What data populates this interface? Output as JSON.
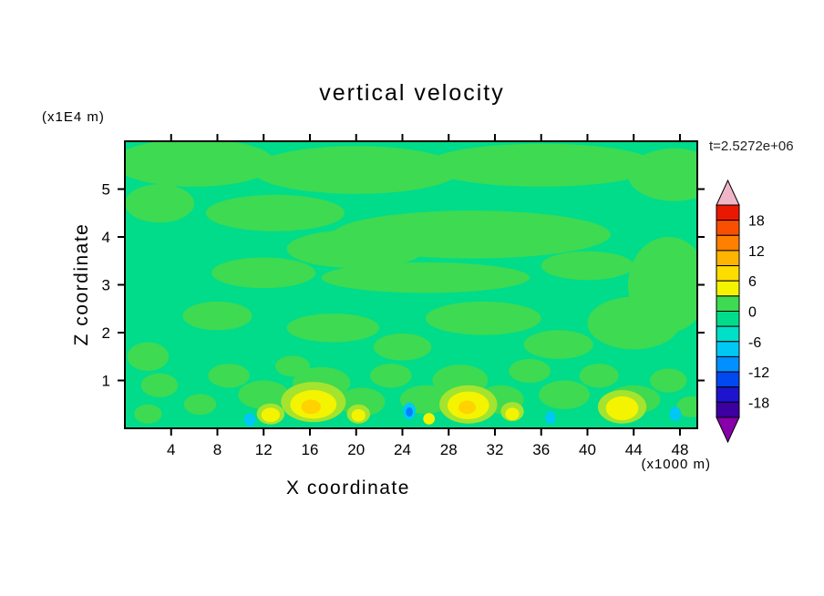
{
  "chart_data": {
    "type": "heatmap",
    "title": "vertical velocity",
    "time_label": "t=2.5272e+06",
    "x_axis_label": "X coordinate",
    "y_axis_label": "Z coordinate",
    "x_unit_label": "(x1000 m)",
    "y_unit_label": "(x1E4 m)",
    "xlim": [
      0,
      49.5
    ],
    "ylim": [
      0,
      6
    ],
    "xticks": [
      4,
      8,
      12,
      16,
      20,
      24,
      28,
      32,
      36,
      40,
      44,
      48
    ],
    "yticks": [
      1,
      2,
      3,
      4,
      5
    ],
    "grid": false,
    "legend_position": "right-colorbar",
    "colorbar": {
      "labels": [
        18,
        12,
        6,
        0,
        -6,
        -12,
        -18
      ],
      "level_min": -21,
      "level_max": 21,
      "step": 3,
      "colors_top_to_bottom": [
        "#ea1800",
        "#f85000",
        "#ff8000",
        "#ffb400",
        "#ffdc00",
        "#f4f400",
        "#3eda52",
        "#00dc8a",
        "#00dfc8",
        "#00c8f5",
        "#0090ff",
        "#0048f0",
        "#1e14cd",
        "#3c00a0"
      ],
      "top_arrow_color": "#f0b6c8",
      "bottom_arrow_color": "#8800aa"
    },
    "colors": {
      "frame": "#000000",
      "time_label": "#222222",
      "background": "#ffffff"
    },
    "field": {
      "background_value_band": [
        -3,
        0
      ],
      "palette": {
        "bg": "#00dc8a",
        "g1": "#3eda52",
        "g2": "#a4e42e",
        "y": "#f4f400",
        "gold": "#ffd200",
        "c": "#00c8f5",
        "b": "#0080ff"
      },
      "patches": [
        [
          6,
          5.55,
          7,
          0.5,
          "g1"
        ],
        [
          20,
          5.4,
          9,
          0.5,
          "g1"
        ],
        [
          36,
          5.5,
          10,
          0.45,
          "g1"
        ],
        [
          47.5,
          5.3,
          4,
          0.55,
          "g1"
        ],
        [
          3,
          4.7,
          3,
          0.4,
          "g1"
        ],
        [
          13,
          4.5,
          6,
          0.38,
          "g1"
        ],
        [
          30,
          4.05,
          12,
          0.5,
          "g1"
        ],
        [
          20,
          3.75,
          6,
          0.4,
          "g1"
        ],
        [
          12,
          3.25,
          4.5,
          0.32,
          "g1"
        ],
        [
          26,
          3.15,
          9,
          0.32,
          "g1"
        ],
        [
          40,
          3.4,
          4,
          0.3,
          "g1"
        ],
        [
          47,
          3.0,
          3.5,
          1.0,
          "g1"
        ],
        [
          8,
          2.35,
          3,
          0.3,
          "g1"
        ],
        [
          18,
          2.1,
          4,
          0.3,
          "g1"
        ],
        [
          31,
          2.3,
          5,
          0.35,
          "g1"
        ],
        [
          44,
          2.2,
          4,
          0.55,
          "g1"
        ],
        [
          37.5,
          1.75,
          3,
          0.3,
          "g1"
        ],
        [
          2,
          1.5,
          1.8,
          0.3,
          "g1"
        ],
        [
          24,
          1.7,
          2.5,
          0.28,
          "g1"
        ],
        [
          3,
          0.9,
          1.6,
          0.25,
          "g1"
        ],
        [
          6.5,
          0.5,
          1.4,
          0.22,
          "g1"
        ],
        [
          9,
          1.1,
          1.8,
          0.25,
          "g1"
        ],
        [
          12,
          0.7,
          2.2,
          0.3,
          "g1"
        ],
        [
          14.5,
          1.3,
          1.5,
          0.22,
          "g1"
        ],
        [
          17,
          0.95,
          2.5,
          0.33,
          "g1"
        ],
        [
          20.5,
          0.55,
          2,
          0.3,
          "g1"
        ],
        [
          23,
          1.1,
          1.8,
          0.25,
          "g1"
        ],
        [
          26,
          0.6,
          2.2,
          0.3,
          "g1"
        ],
        [
          29,
          1.0,
          2.4,
          0.33,
          "g1"
        ],
        [
          32.5,
          0.6,
          2,
          0.3,
          "g1"
        ],
        [
          35,
          1.2,
          1.8,
          0.25,
          "g1"
        ],
        [
          38,
          0.7,
          2.2,
          0.3,
          "g1"
        ],
        [
          41,
          1.1,
          1.7,
          0.25,
          "g1"
        ],
        [
          44,
          0.6,
          2.3,
          0.3,
          "g1"
        ],
        [
          47,
          1.0,
          1.6,
          0.25,
          "g1"
        ],
        [
          2,
          0.3,
          1.2,
          0.2,
          "g1"
        ],
        [
          49,
          0.45,
          1.3,
          0.22,
          "g1"
        ],
        [
          16.3,
          0.55,
          2.8,
          0.42,
          "g2"
        ],
        [
          29.7,
          0.5,
          2.5,
          0.4,
          "g2"
        ],
        [
          43,
          0.45,
          2.1,
          0.35,
          "g2"
        ],
        [
          12.6,
          0.3,
          1.2,
          0.22,
          "g2"
        ],
        [
          20.2,
          0.3,
          1.0,
          0.2,
          "g2"
        ],
        [
          33.5,
          0.35,
          1.0,
          0.2,
          "g2"
        ],
        [
          16.3,
          0.5,
          2.0,
          0.3,
          "y"
        ],
        [
          29.7,
          0.48,
          1.8,
          0.29,
          "y"
        ],
        [
          43,
          0.42,
          1.4,
          0.25,
          "y"
        ],
        [
          12.6,
          0.28,
          0.8,
          0.15,
          "y"
        ],
        [
          20.2,
          0.27,
          0.6,
          0.13,
          "y"
        ],
        [
          33.5,
          0.3,
          0.6,
          0.13,
          "y"
        ],
        [
          26.3,
          0.2,
          0.5,
          0.12,
          "y"
        ],
        [
          16.1,
          0.45,
          0.85,
          0.15,
          "gold"
        ],
        [
          29.6,
          0.44,
          0.75,
          0.14,
          "gold"
        ],
        [
          24.6,
          0.36,
          0.55,
          0.18,
          "c"
        ],
        [
          10.8,
          0.18,
          0.5,
          0.14,
          "c"
        ],
        [
          36.8,
          0.22,
          0.45,
          0.13,
          "c"
        ],
        [
          47.6,
          0.3,
          0.5,
          0.15,
          "c"
        ],
        [
          24.6,
          0.34,
          0.3,
          0.1,
          "b"
        ]
      ]
    }
  }
}
